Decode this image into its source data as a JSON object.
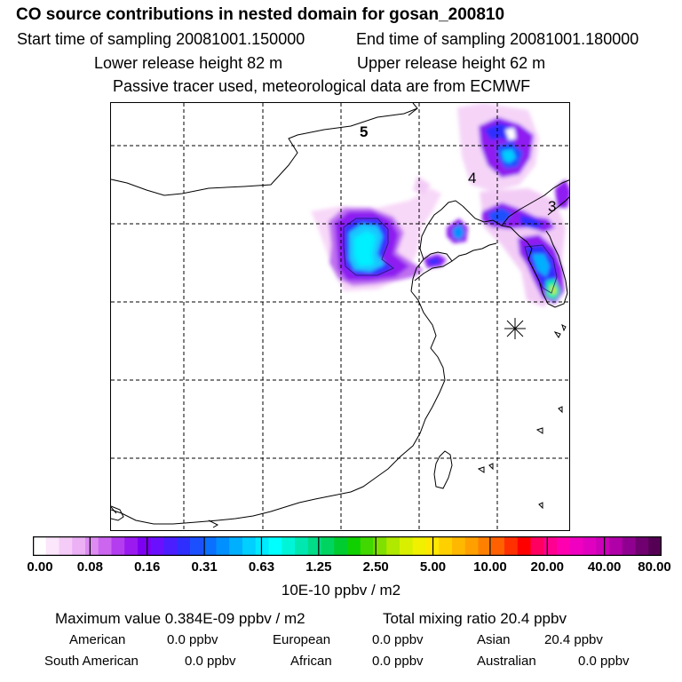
{
  "header": {
    "title": "CO  source contributions in nested domain for gosan_200810",
    "start_label": "Start time of sampling 20081001.150000",
    "end_label": "End time of sampling 20081001.180000",
    "lower_label": "Lower release height   82 m",
    "upper_label": "Upper release height   62 m",
    "info": "Passive tracer used, meteorological data are from ECMWF"
  },
  "map": {
    "contour_labels": [
      "5",
      "4",
      "3"
    ],
    "receptor": "gosan-receptor-marker"
  },
  "colorbar": {
    "ticks": [
      "0.00",
      "0.08",
      "0.16",
      "0.31",
      "0.63",
      "1.25",
      "2.50",
      "5.00",
      "10.00",
      "20.00",
      "40.00",
      "80.00"
    ],
    "colors": [
      "#ffffff",
      "#fbe6fb",
      "#f5ccf7",
      "#ecb0f5",
      "#dd8cf2",
      "#cc66ef",
      "#b43df0",
      "#9a1af0",
      "#7e00f2",
      "#6a10ff",
      "#4a1eff",
      "#2e2eff",
      "#1c50ff",
      "#0a70ff",
      "#0090ff",
      "#00b0ff",
      "#00cfff",
      "#00eaff",
      "#00ffff",
      "#00f5d8",
      "#00e8b0",
      "#00dc88",
      "#00d460",
      "#00cc30",
      "#10d000",
      "#40d800",
      "#80e000",
      "#b0e800",
      "#d8f000",
      "#f0f000",
      "#ffe800",
      "#ffd000",
      "#ffb800",
      "#ffa000",
      "#ff8000",
      "#ff6000",
      "#ff3000",
      "#ff0000",
      "#ff0060",
      "#ff0090",
      "#ff00b0",
      "#f000c0",
      "#e000c0",
      "#cc00b8",
      "#b000a8",
      "#900090",
      "#700070",
      "#550055"
    ],
    "units": "10E-10 ppbv / m2"
  },
  "summary": {
    "max_label": "Maximum value  0.384E-09 ppbv / m2",
    "total_label": "Total mixing ratio       20.4 ppbv",
    "regions": [
      {
        "name": "American",
        "value": "0.0 ppbv"
      },
      {
        "name": "European",
        "value": "0.0 ppbv"
      },
      {
        "name": "Asian",
        "value": "20.4 ppbv"
      },
      {
        "name": "South American",
        "value": "0.0 ppbv"
      },
      {
        "name": "African",
        "value": "0.0 ppbv"
      },
      {
        "name": "Australian",
        "value": "0.0 ppbv"
      }
    ]
  }
}
